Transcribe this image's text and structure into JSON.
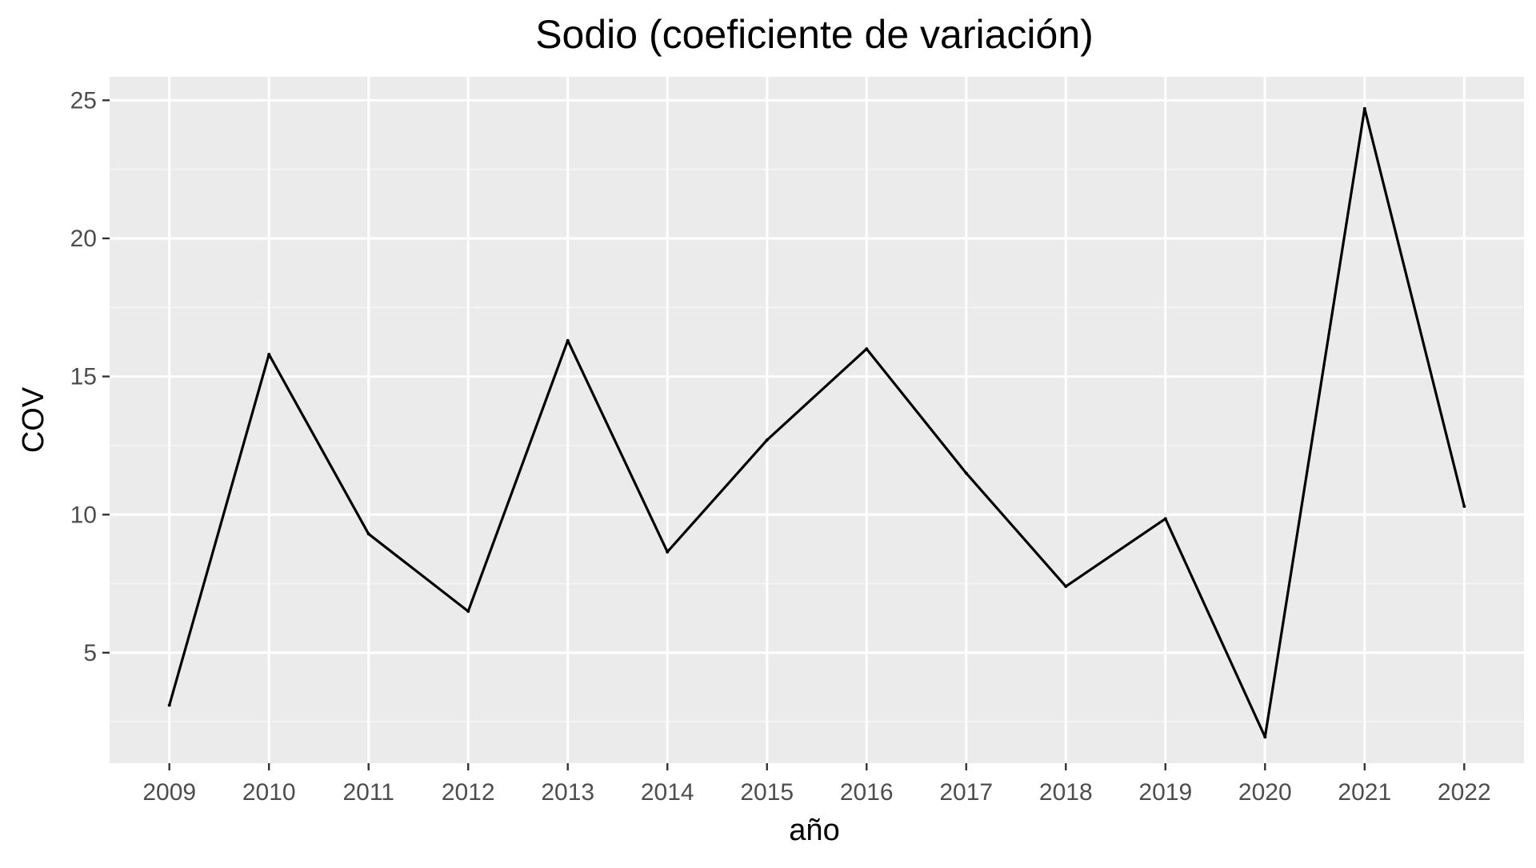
{
  "chart_data": {
    "type": "line",
    "title": "Sodio (coeficiente de variación)",
    "xlabel": "año",
    "ylabel": "COV",
    "x": [
      2009,
      2010,
      2011,
      2012,
      2013,
      2014,
      2015,
      2016,
      2017,
      2018,
      2019,
      2020,
      2021,
      2022
    ],
    "series": [
      {
        "values": [
          3.1,
          15.8,
          9.3,
          6.5,
          16.3,
          8.65,
          12.7,
          16.0,
          11.5,
          7.4,
          9.85,
          1.95,
          24.7,
          10.3
        ]
      }
    ],
    "xlim": [
      2008.4,
      2022.6
    ],
    "ylim": [
      1.0,
      25.85
    ],
    "y_ticks": [
      5,
      10,
      15,
      20,
      25
    ],
    "x_ticks": [
      "2009",
      "2010",
      "2011",
      "2012",
      "2013",
      "2014",
      "2015",
      "2016",
      "2017",
      "2018",
      "2019",
      "2020",
      "2021",
      "2022"
    ],
    "grid": true,
    "legend": "none",
    "colors": {
      "panel_background": "#ebebeb",
      "grid_major": "#ffffff",
      "grid_minor": "#f5f5f5",
      "line": "#000000",
      "tick_text": "#4d4d4d",
      "tick_mark": "#333333"
    }
  }
}
